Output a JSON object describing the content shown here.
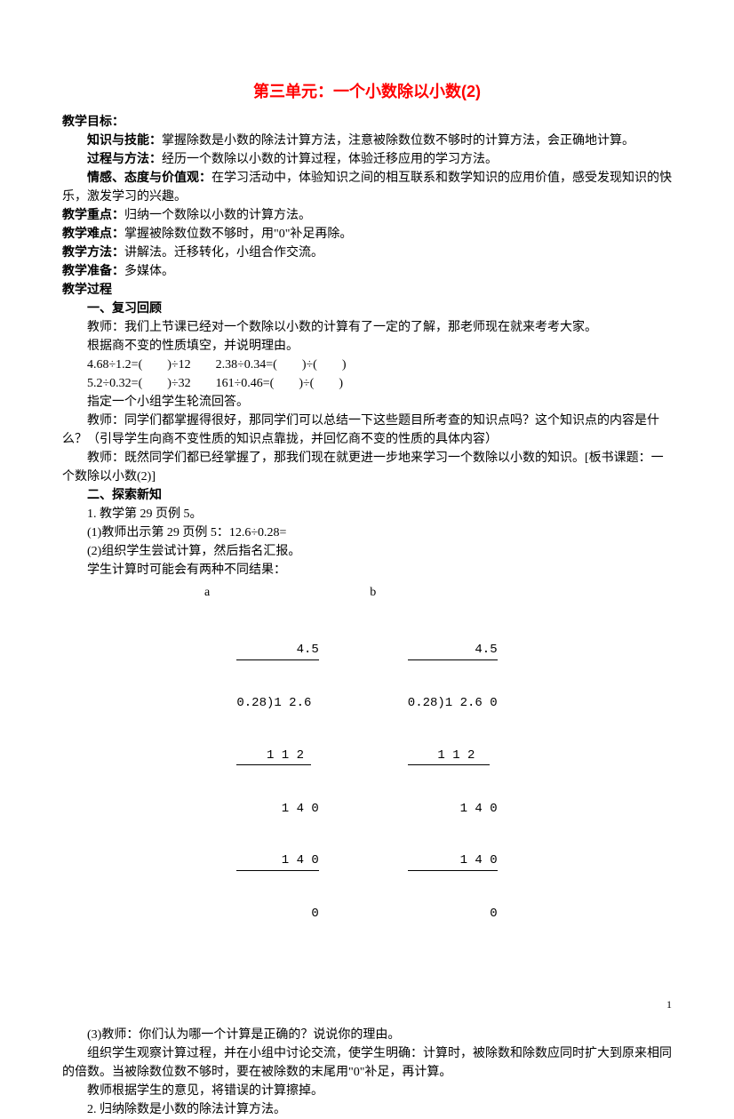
{
  "title": "第三单元：一个小数除以小数(2)",
  "headings": {
    "goal": "教学目标：",
    "key": "教学重点：",
    "difficulty": "教学难点：",
    "method": "教学方法：",
    "prep": "教学准备：",
    "process": "教学过程",
    "review": "一、复习回顾",
    "explore": "二、探索新知"
  },
  "labels": {
    "knowledge": "知识与技能：",
    "processMethod": "过程与方法：",
    "emotion": "情感、态度与价值观：",
    "a": "a",
    "b": "b"
  },
  "text": {
    "knowledge": "掌握除数是小数的除法计算方法，注意被除数位数不够时的计算方法，会正确地计算。",
    "processMethod": "经历一个数除以小数的计算过程，体验迁移应用的学习方法。",
    "emotion": "在学习活动中，体验知识之间的相互联系和数学知识的应用价值，感受发现知识的快乐，激发学习的兴趣。",
    "key": "归纳一个数除以小数的计算方法。",
    "difficulty": "掌握被除数位数不够时，用\"0\"补足再除。",
    "method": "讲解法。迁移转化，小组合作交流。",
    "prep": "多媒体。",
    "review1": "教师：我们上节课已经对一个数除以小数的计算有了一定的了解，那老师现在就来考考大家。",
    "review2": "根据商不变的性质填空，并说明理由。",
    "eq1": "4.68÷1.2=(　　)÷12　　2.38÷0.34=(　　)÷(　　)",
    "eq2": "5.2÷0.32=(　　)÷32　　161÷0.46=(　　)÷(　　)",
    "review3": "指定一个小组学生轮流回答。",
    "review4": "教师：同学们都掌握得很好，那同学们可以总结一下这些题目所考查的知识点吗？这个知识点的内容是什么？（引导学生向商不变性质的知识点靠拢，并回忆商不变的性质的具体内容）",
    "review5": "教师：既然同学们都已经掌握了，那我们现在就更进一步地来学习一个数除以小数的知识。[板书课题：一个数除以小数(2)]",
    "explore1": "1. 教学第 29 页例 5。",
    "explore2": "(1)教师出示第 29 页例 5：12.6÷0.28=",
    "explore3": "(2)组织学生尝试计算，然后指名汇报。",
    "explore4": "学生计算时可能会有两种不同结果：",
    "after1": "(3)教师：你们认为哪一个计算是正确的？说说你的理由。",
    "after2": "组织学生观察计算过程，并在小组中讨论交流，使学生明确：计算时，被除数和除数应同时扩大到原来相同的倍数。当被除数位数不够时，要在被除数的末尾用\"0\"补足，再计算。",
    "after3": "教师根据学生的意见，将错误的计算擦掉。",
    "after4": "2. 归纳除数是小数的除法计算方法。"
  },
  "longdiv": {
    "a": {
      "quotient": "        4.5",
      "divisor": "0.28)1 2.6",
      "r1": "    1 1 2 ",
      "r2": "      1 4 0",
      "r3": "      1 4 0",
      "r4": "          0"
    },
    "b": {
      "quotient": "         4.5",
      "divisor": "0.28)1 2.6 0",
      "r1": "    1 1 2  ",
      "r2": "       1 4 0",
      "r3": "       1 4 0",
      "r4": "           0"
    }
  },
  "colors": {
    "title": "#ff0000",
    "text": "#000000",
    "background": "#ffffff"
  },
  "page_number": "1"
}
